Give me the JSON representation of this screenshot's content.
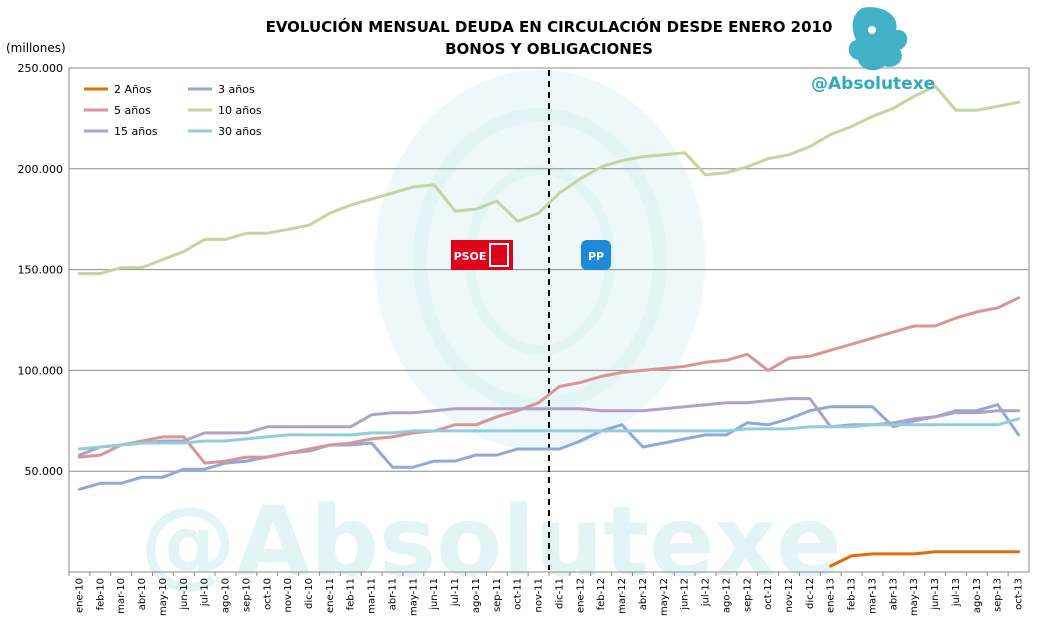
{
  "chart_data": {
    "type": "line",
    "title": "EVOLUCIÓN MENSUAL DEUDA EN CIRCULACIÓN DESDE ENERO 2010",
    "subtitle": "BONOS Y OBLIGACIONES",
    "unit_label": "(millones)",
    "ylim": [
      0,
      250000
    ],
    "y_ticks": [
      "250.000",
      "200.000",
      "150.000",
      "100.000",
      "50.000"
    ],
    "y_tick_values": [
      250000,
      200000,
      150000,
      100000,
      50000
    ],
    "grid": "horizontal",
    "legend_position": "top-left",
    "categories": [
      "ene-10",
      "feb-10",
      "mar-10",
      "abr-10",
      "may-10",
      "jun-10",
      "jul-10",
      "ago-10",
      "sep-10",
      "oct-10",
      "nov-10",
      "dic-10",
      "ene-11",
      "feb-11",
      "mar-11",
      "abr-11",
      "may-11",
      "jun-11",
      "jul-11",
      "ago-11",
      "sep-11",
      "oct-11",
      "nov-11",
      "dic-11",
      "ene-12",
      "feb-12",
      "mar-12",
      "abr-12",
      "may-12",
      "jun-12",
      "jul-12",
      "ago-12",
      "sep-12",
      "oct-12",
      "nov-12",
      "dic-12",
      "ene-13",
      "feb-13",
      "mar-13",
      "abr-13",
      "may-13",
      "jun-13",
      "jul-13",
      "ago-13",
      "sep-13",
      "oct-13"
    ],
    "x_tick_labels": [
      "ene-10",
      "feb-10",
      "mar-10",
      "abr-10",
      "may-10",
      "jun-10",
      "jul-10",
      "ago-10",
      "sep-10",
      "oct-10",
      "nov-10",
      "dic-10",
      "ene-11",
      "feb-11",
      "mar-11",
      "abr-11",
      "may-11",
      "jun-11",
      "jul-11",
      "ago-11",
      "sep-11",
      "oct-11",
      "nov-11",
      "dic-11",
      "ene-12",
      "feb-12",
      "mar-12",
      "abr-12",
      "may-12",
      "jun-12",
      "jul-12",
      "ago-12",
      "sep-12",
      "oct-12",
      "nov-12",
      "dic-12",
      "ene-13",
      "feb-13",
      "mar-13",
      "abr-13",
      "may-13",
      "jun-13",
      "jul-13",
      "ago-13",
      "sep-13",
      "oct-13"
    ],
    "divider_after_category": "nov-11",
    "series": [
      {
        "name": "2 Años",
        "color": "#e36c0a",
        "values": [
          null,
          null,
          null,
          null,
          null,
          null,
          null,
          null,
          null,
          null,
          null,
          null,
          null,
          null,
          null,
          null,
          null,
          null,
          null,
          null,
          null,
          null,
          null,
          null,
          null,
          null,
          null,
          null,
          null,
          null,
          null,
          null,
          null,
          null,
          null,
          null,
          3000,
          8000,
          9000,
          9000,
          9000,
          10000,
          10000,
          10000,
          10000,
          10000
        ]
      },
      {
        "name": "3 años",
        "color": "#8eaadb",
        "values": [
          41000,
          44000,
          44000,
          47000,
          47000,
          51000,
          51000,
          54000,
          55000,
          57000,
          59000,
          60000,
          63000,
          63000,
          64000,
          52000,
          52000,
          55000,
          55000,
          58000,
          58000,
          61000,
          61000,
          61000,
          65000,
          70000,
          73000,
          62000,
          64000,
          66000,
          68000,
          68000,
          74000,
          73000,
          76000,
          80000,
          82000,
          82000,
          82000,
          72000,
          75000,
          77000,
          80000,
          80000,
          83000,
          68000
        ]
      },
      {
        "name": "5 años",
        "color": "#da9694",
        "values": [
          57000,
          58000,
          63000,
          65000,
          67000,
          67000,
          54000,
          55000,
          57000,
          57000,
          59000,
          61000,
          63000,
          64000,
          66000,
          67000,
          69000,
          70000,
          73000,
          73000,
          77000,
          80000,
          84000,
          92000,
          94000,
          97000,
          99000,
          100000,
          101000,
          102000,
          104000,
          105000,
          108000,
          100000,
          106000,
          107000,
          110000,
          113000,
          116000,
          119000,
          122000,
          122000,
          126000,
          129000,
          131000,
          136000
        ]
      },
      {
        "name": "10 años",
        "color": "#c3d69b",
        "values": [
          148000,
          148000,
          151000,
          151000,
          155000,
          159000,
          165000,
          165000,
          168000,
          168000,
          170000,
          172000,
          178000,
          182000,
          185000,
          188000,
          191000,
          192000,
          179000,
          180000,
          184000,
          174000,
          178000,
          188000,
          195000,
          201000,
          204000,
          206000,
          207000,
          208000,
          197000,
          198000,
          201000,
          205000,
          207000,
          211000,
          217000,
          221000,
          226000,
          230000,
          236000,
          241000,
          229000,
          229000,
          231000,
          233000
        ]
      },
      {
        "name": "15 años",
        "color": "#b2a1c7",
        "values": [
          58000,
          62000,
          63000,
          64000,
          65000,
          65000,
          69000,
          69000,
          69000,
          72000,
          72000,
          72000,
          72000,
          72000,
          78000,
          79000,
          79000,
          80000,
          81000,
          81000,
          81000,
          81000,
          81000,
          81000,
          81000,
          80000,
          80000,
          80000,
          81000,
          82000,
          83000,
          84000,
          84000,
          85000,
          86000,
          86000,
          72000,
          73000,
          73000,
          74000,
          76000,
          77000,
          79000,
          79000,
          80000,
          80000
        ]
      },
      {
        "name": "30 años",
        "color": "#92cddc",
        "values": [
          61000,
          62000,
          63000,
          64000,
          64000,
          64000,
          65000,
          65000,
          66000,
          67000,
          68000,
          68000,
          68000,
          68000,
          69000,
          69000,
          70000,
          70000,
          70000,
          70000,
          70000,
          70000,
          70000,
          70000,
          70000,
          70000,
          70000,
          70000,
          70000,
          70000,
          70000,
          70000,
          71000,
          71000,
          71000,
          72000,
          72000,
          72000,
          73000,
          73000,
          73000,
          73000,
          73000,
          73000,
          73000,
          76000
        ]
      }
    ]
  },
  "branding": {
    "handle": "@Absolutexe",
    "watermark_text": "@Absolutexe",
    "logo_icon": "griffin-logo-icon",
    "accent_color": "#2fa8c0",
    "watermark_color": "#e3f4f7"
  },
  "annotations": {
    "party_left_label": "PSOE",
    "party_left_color": "#e1001a",
    "party_right_label": "PP",
    "party_right_color": "#1e88d9"
  }
}
